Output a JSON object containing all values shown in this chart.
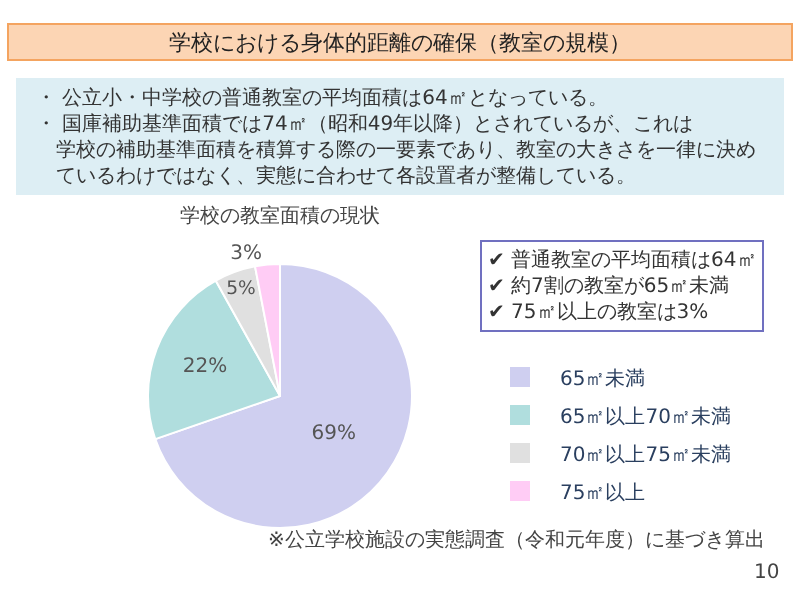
{
  "chart_data": {
    "type": "pie",
    "title": "学校における身体的距離の確保（教室の規模）",
    "subtitle": "学校の教室面積の現状",
    "categories": [
      "65㎡未満",
      "65㎡以上70㎡未満",
      "70㎡以上75㎡未満",
      "75㎡以上"
    ],
    "values": [
      69,
      22,
      5,
      3
    ],
    "colors": [
      "#cfcff0",
      "#b0dede",
      "#e0e0e0",
      "#ffccf5"
    ],
    "value_labels": [
      "69%",
      "22%",
      "5%",
      "3%"
    ],
    "legend": "right",
    "annotations": [
      "・ 公立小・中学校の普通教室の平均面積は64㎡となっている。",
      "・ 国庫補助基準面積では74㎡（昭和49年以降）とされているが、これは学校の補助基準面積を積算する際の一要素であり、教室の大きさを一律に決めているわけではなく、実態に合わせて各設置者が整備している。",
      "✔ 普通教室の平均面積は64㎡\n✔ 約7割の教室が65㎡未満\n✔ 75㎡以上の教室は3%",
      "※公立学校施設の実態調査（令和元年度）に基づき算出",
      "10"
    ]
  }
}
